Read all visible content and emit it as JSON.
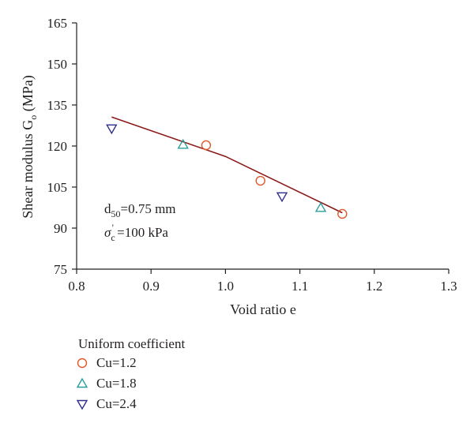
{
  "chart_data": {
    "type": "scatter",
    "xlabel": "Void ratio e",
    "ylabel": {
      "main": "Shear modulus G",
      "sub": "o",
      "unit": " (MPa)"
    },
    "xlim": [
      0.8,
      1.3
    ],
    "ylim": [
      75,
      165
    ],
    "xticks": [
      "0.8",
      "0.9",
      "1.0",
      "1.1",
      "1.2",
      "1.3"
    ],
    "yticks": [
      "75",
      "90",
      "105",
      "120",
      "135",
      "150",
      "165"
    ],
    "grid": false,
    "annotations": {
      "d50": {
        "base": "d",
        "sub": "50",
        "rest": "=0.75 mm"
      },
      "sigma": {
        "base": "σ",
        "sub": "c",
        "sup": "'",
        "rest": " =100 kPa"
      }
    },
    "legend": {
      "title": "Uniform coefficient",
      "placement": "bottom-left"
    },
    "series": [
      {
        "name": "Cu=1.2",
        "marker": "circle",
        "color": "#e0592a",
        "points": [
          [
            0.974,
            120.3
          ],
          [
            1.047,
            107.3
          ],
          [
            1.157,
            95.2
          ]
        ]
      },
      {
        "name": "Cu=1.8",
        "marker": "triangle-up",
        "color": "#2a9d9d",
        "points": [
          [
            0.943,
            120.5
          ],
          [
            1.128,
            97.4
          ]
        ]
      },
      {
        "name": "Cu=2.4",
        "marker": "triangle-down",
        "color": "#2e2e8a",
        "points": [
          [
            0.847,
            126.4
          ],
          [
            1.076,
            101.6
          ]
        ]
      }
    ],
    "fit_line": {
      "color": "#8b1a1a",
      "points": [
        [
          0.847,
          130.6
        ],
        [
          1.0,
          116.2
        ],
        [
          1.157,
          95.6
        ]
      ]
    }
  }
}
